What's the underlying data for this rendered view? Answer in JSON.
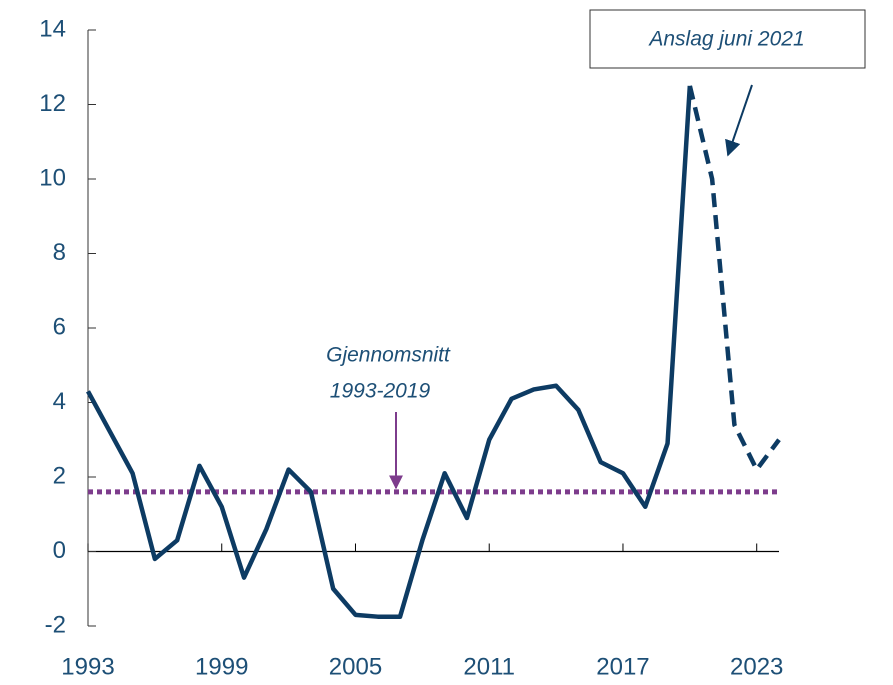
{
  "chart_data": {
    "type": "line",
    "x": [
      1993,
      1994,
      1995,
      1996,
      1997,
      1998,
      1999,
      2000,
      2001,
      2002,
      2003,
      2004,
      2005,
      2006,
      2007,
      2008,
      2009,
      2010,
      2011,
      2012,
      2013,
      2014,
      2015,
      2016,
      2017,
      2018,
      2019,
      2020,
      2021,
      2022,
      2023,
      2024
    ],
    "series": [
      {
        "color": "#0d3b63",
        "dash": false,
        "values": [
          4.3,
          3.2,
          2.1,
          -0.2,
          0.3,
          2.3,
          1.2,
          -0.7,
          0.6,
          2.2,
          1.6,
          -1.0,
          -1.7,
          -1.75,
          -1.75,
          0.3,
          2.1,
          0.9,
          3.0,
          4.1,
          4.35,
          4.45,
          3.8,
          2.4,
          2.1,
          1.2,
          2.9,
          12.5,
          null,
          null,
          null,
          null
        ]
      },
      {
        "color": "#0d3b63",
        "dash": true,
        "values": [
          null,
          null,
          null,
          null,
          null,
          null,
          null,
          null,
          null,
          null,
          null,
          null,
          null,
          null,
          null,
          null,
          null,
          null,
          null,
          null,
          null,
          null,
          null,
          null,
          null,
          null,
          null,
          12.5,
          10.0,
          3.4,
          2.2,
          3.0
        ]
      }
    ],
    "average": {
      "value": 1.6,
      "color": "#7d3c8c"
    },
    "annotations": {
      "forecast": "Anslag juni 2021",
      "average_line1": "Gjennomsnitt",
      "average_line2": "1993-2019"
    },
    "xlim": [
      1993,
      2024
    ],
    "xticks": [
      1993,
      1999,
      2005,
      2011,
      2017,
      2023
    ],
    "ylim": [
      -2,
      14
    ],
    "yticks": [
      -2,
      0,
      2,
      4,
      6,
      8,
      10,
      12,
      14
    ]
  }
}
